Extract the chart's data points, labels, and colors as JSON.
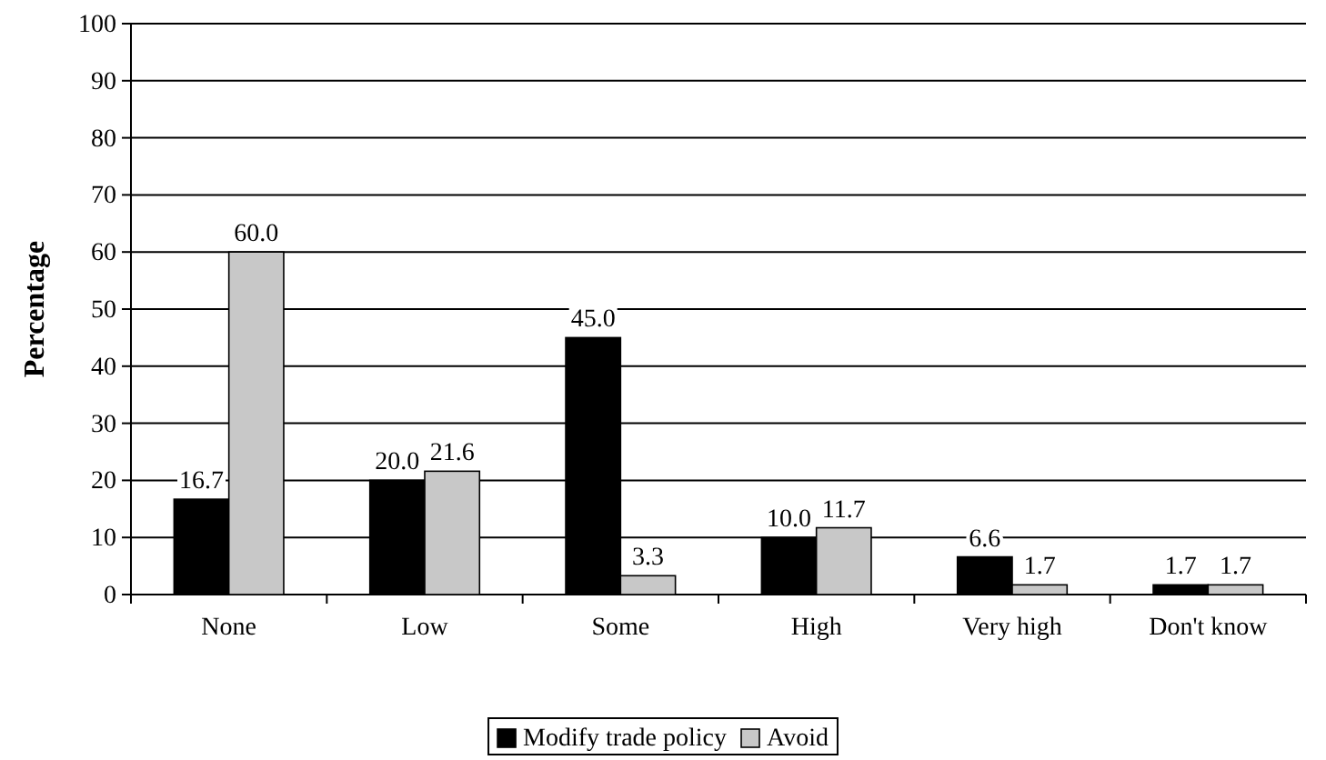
{
  "chart_data": {
    "type": "bar",
    "ylabel": "Percentage",
    "categories": [
      "None",
      "Low",
      "Some",
      "High",
      "Very high",
      "Don't know"
    ],
    "series": [
      {
        "name": "Modify trade policy",
        "color": "#000000",
        "values": [
          16.7,
          20.0,
          45.0,
          10.0,
          6.6,
          1.7
        ],
        "value_labels": [
          "16.7",
          "20.0",
          "45.0",
          "10.0",
          "6.6",
          "1.7"
        ]
      },
      {
        "name": "Avoid",
        "color": "#c8c8c8",
        "values": [
          60.0,
          21.6,
          3.3,
          11.7,
          1.7,
          1.7
        ],
        "value_labels": [
          "60.0",
          "21.6",
          "3.3",
          "11.7",
          "1.7",
          "1.7"
        ]
      }
    ],
    "ylim": [
      0,
      100
    ],
    "yticks": [
      0,
      10,
      20,
      30,
      40,
      50,
      60,
      70,
      80,
      90,
      100
    ],
    "grid": "y",
    "legend": "bottom"
  }
}
